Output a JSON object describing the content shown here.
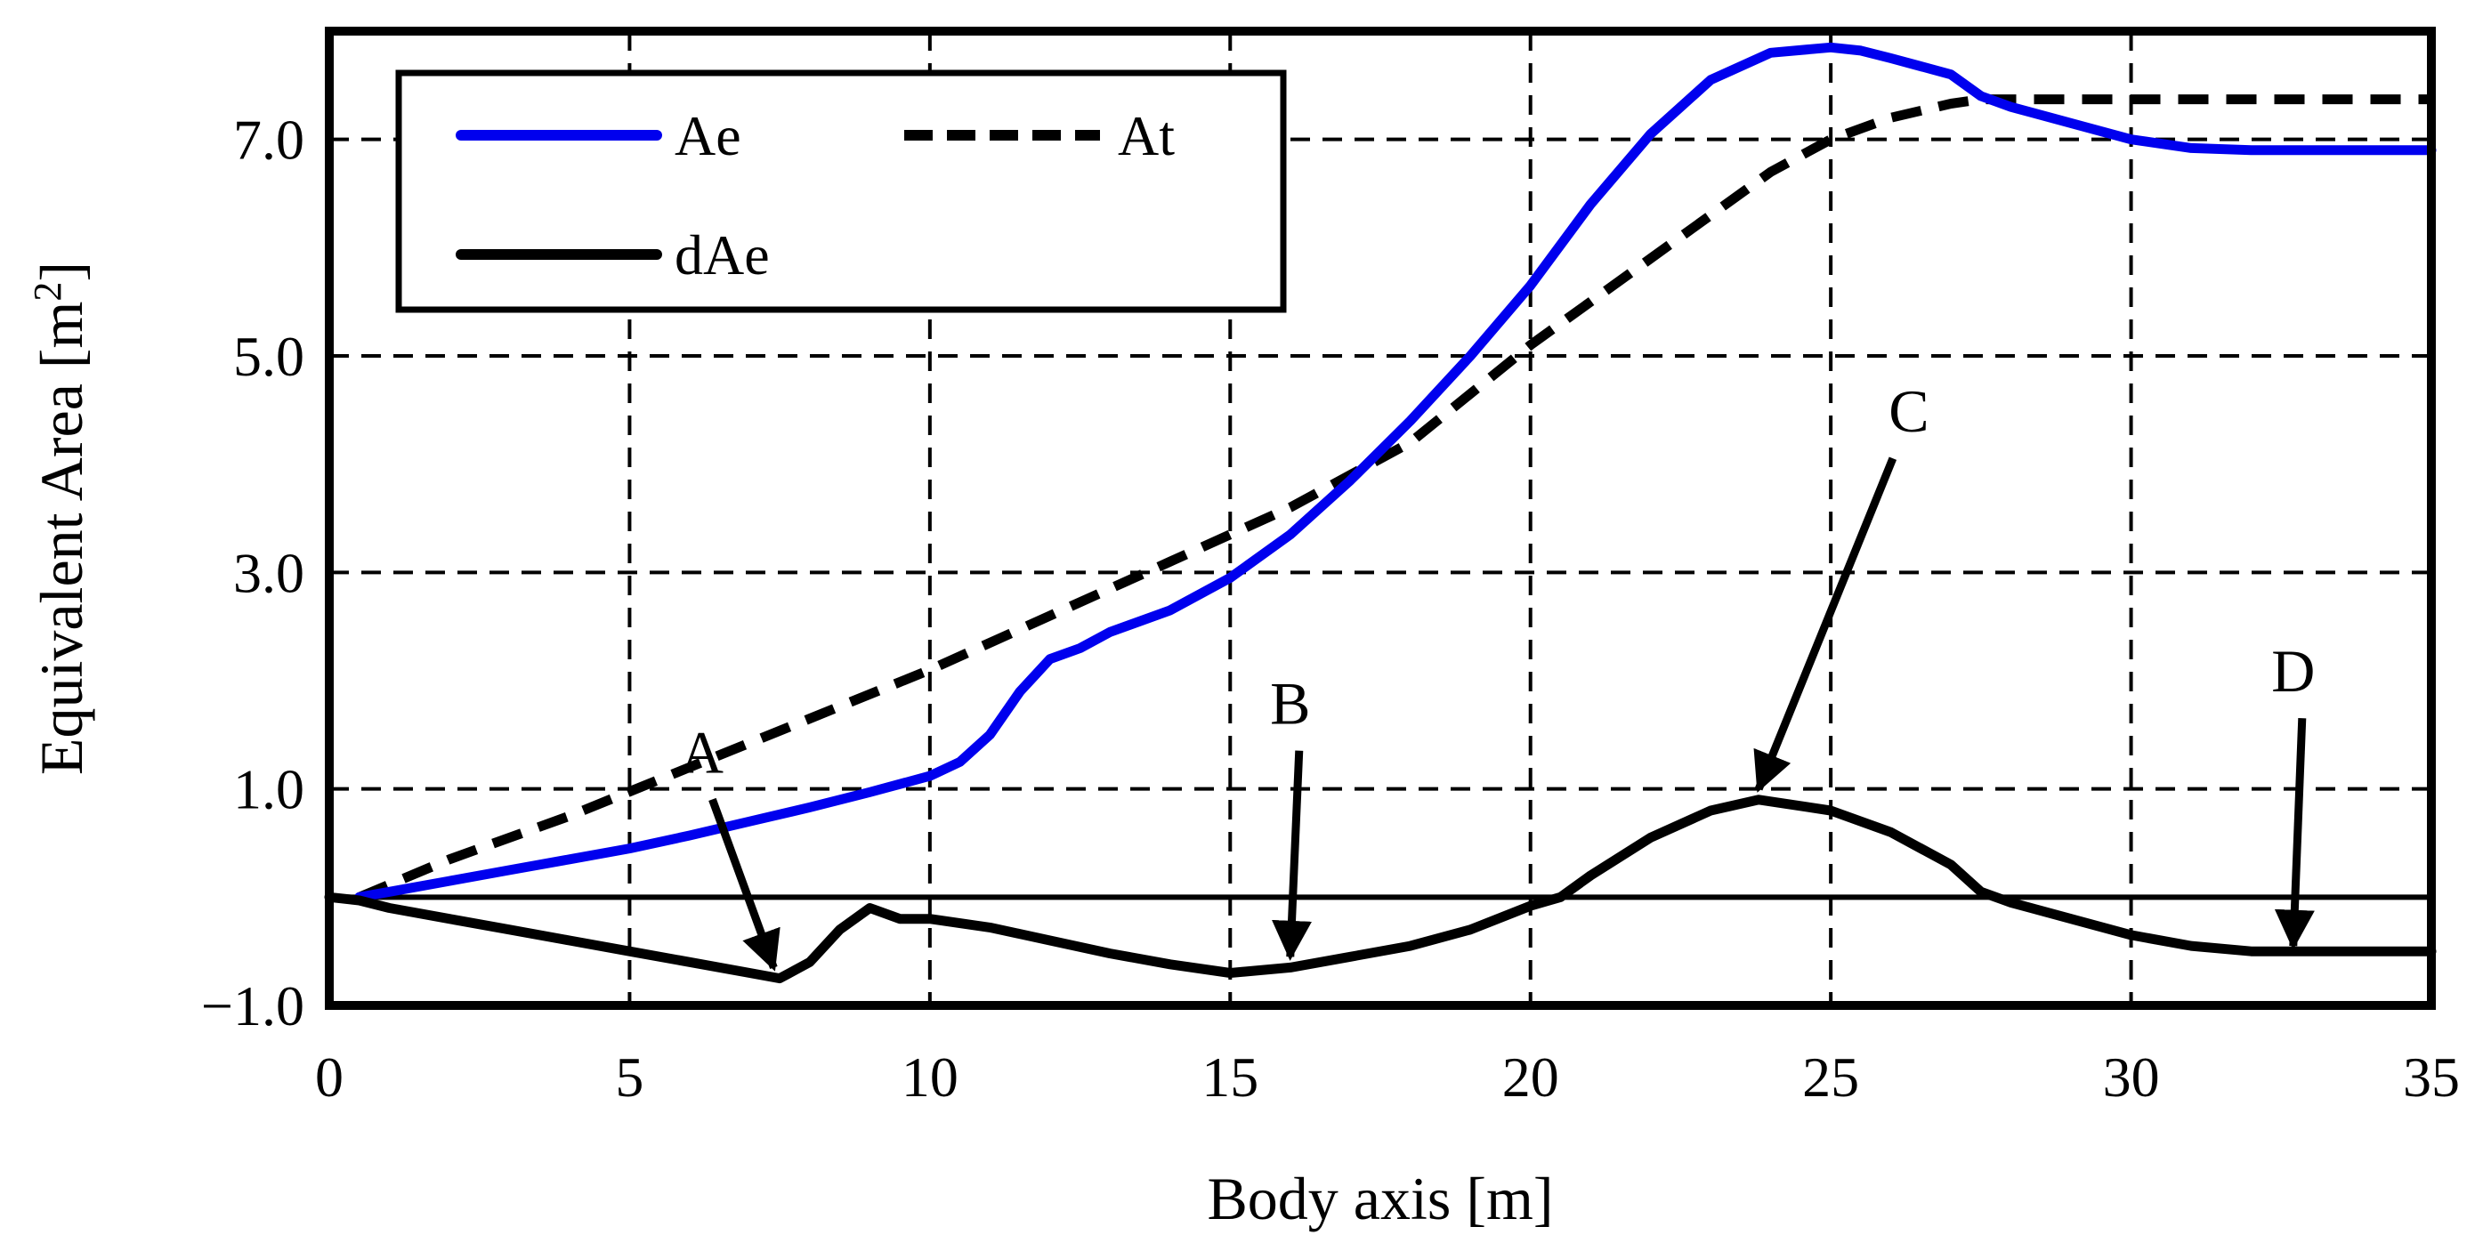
{
  "chart_data": {
    "type": "line",
    "title": "",
    "xlabel": "Body axis [m]",
    "ylabel_main": "Equivalent Area [m",
    "ylabel_sup": "2",
    "ylabel_end": "]",
    "xlim": [
      0,
      35
    ],
    "ylim": [
      -1.0,
      8.0
    ],
    "grid": "dashed",
    "legend_position": "top-left",
    "x_ticks": [
      0,
      5,
      10,
      15,
      20,
      25,
      30,
      35
    ],
    "x_tick_labels": [
      "0",
      "5",
      "10",
      "15",
      "20",
      "25",
      "30",
      "35"
    ],
    "y_ticks": [
      -1.0,
      1.0,
      3.0,
      5.0,
      7.0
    ],
    "y_tick_labels": [
      "−1.0",
      "1.0",
      "3.0",
      "5.0",
      "7.0"
    ],
    "zero_line": 0,
    "series": [
      {
        "name": "Ae",
        "color": "#0000ee",
        "style": "solid",
        "x": [
          0.5,
          1,
          2,
          3,
          4,
          5,
          6,
          7,
          8,
          9,
          10,
          10.5,
          11,
          11.5,
          12,
          12.5,
          13,
          14,
          15,
          16,
          17,
          18,
          19,
          20,
          21,
          22,
          23,
          24,
          25,
          25.5,
          26,
          27,
          27.5,
          28,
          29,
          30,
          31,
          32,
          33,
          34,
          35
        ],
        "y": [
          0.0,
          0.05,
          0.15,
          0.25,
          0.35,
          0.45,
          0.57,
          0.7,
          0.83,
          0.97,
          1.12,
          1.25,
          1.5,
          1.9,
          2.2,
          2.3,
          2.45,
          2.65,
          2.95,
          3.35,
          3.85,
          4.4,
          5.0,
          5.65,
          6.4,
          7.05,
          7.55,
          7.8,
          7.85,
          7.82,
          7.75,
          7.6,
          7.4,
          7.3,
          7.15,
          7.0,
          6.92,
          6.9,
          6.9,
          6.9,
          6.9
        ]
      },
      {
        "name": "At",
        "color": "#000000",
        "style": "dashed",
        "x": [
          0.5,
          2,
          4,
          6,
          8,
          10,
          12,
          14,
          16,
          18,
          20,
          21,
          22,
          23,
          24,
          25,
          26,
          27,
          27.5,
          28,
          30,
          32,
          35
        ],
        "y": [
          0.0,
          0.35,
          0.75,
          1.2,
          1.65,
          2.1,
          2.6,
          3.1,
          3.6,
          4.2,
          5.1,
          5.5,
          5.9,
          6.3,
          6.7,
          7.0,
          7.2,
          7.33,
          7.37,
          7.37,
          7.37,
          7.37,
          7.37
        ]
      },
      {
        "name": "dAe",
        "color": "#000000",
        "style": "solid",
        "x": [
          0,
          0.5,
          1,
          2,
          3,
          4,
          5,
          6,
          7,
          7.5,
          8,
          8.5,
          9,
          9.5,
          10,
          11,
          12,
          13,
          14,
          15,
          16,
          17,
          18,
          19,
          20,
          20.5,
          21,
          22,
          23,
          23.8,
          25,
          26,
          27,
          27.5,
          28,
          29,
          30,
          31,
          32,
          33,
          34,
          35
        ],
        "y": [
          0.0,
          -0.03,
          -0.1,
          -0.2,
          -0.3,
          -0.4,
          -0.5,
          -0.6,
          -0.7,
          -0.75,
          -0.6,
          -0.3,
          -0.1,
          -0.2,
          -0.2,
          -0.28,
          -0.4,
          -0.52,
          -0.62,
          -0.7,
          -0.65,
          -0.55,
          -0.45,
          -0.3,
          -0.08,
          0.0,
          0.2,
          0.55,
          0.8,
          0.9,
          0.8,
          0.6,
          0.3,
          0.05,
          -0.05,
          -0.2,
          -0.35,
          -0.45,
          -0.5,
          -0.5,
          -0.5,
          -0.5
        ]
      }
    ],
    "annotations": [
      {
        "label": "A",
        "x": 7.4,
        "y": -0.7
      },
      {
        "label": "B",
        "x": 16.0,
        "y": -0.6
      },
      {
        "label": "C",
        "x": 23.8,
        "y": 0.95
      },
      {
        "label": "D",
        "x": 32.7,
        "y": -0.5
      }
    ]
  }
}
